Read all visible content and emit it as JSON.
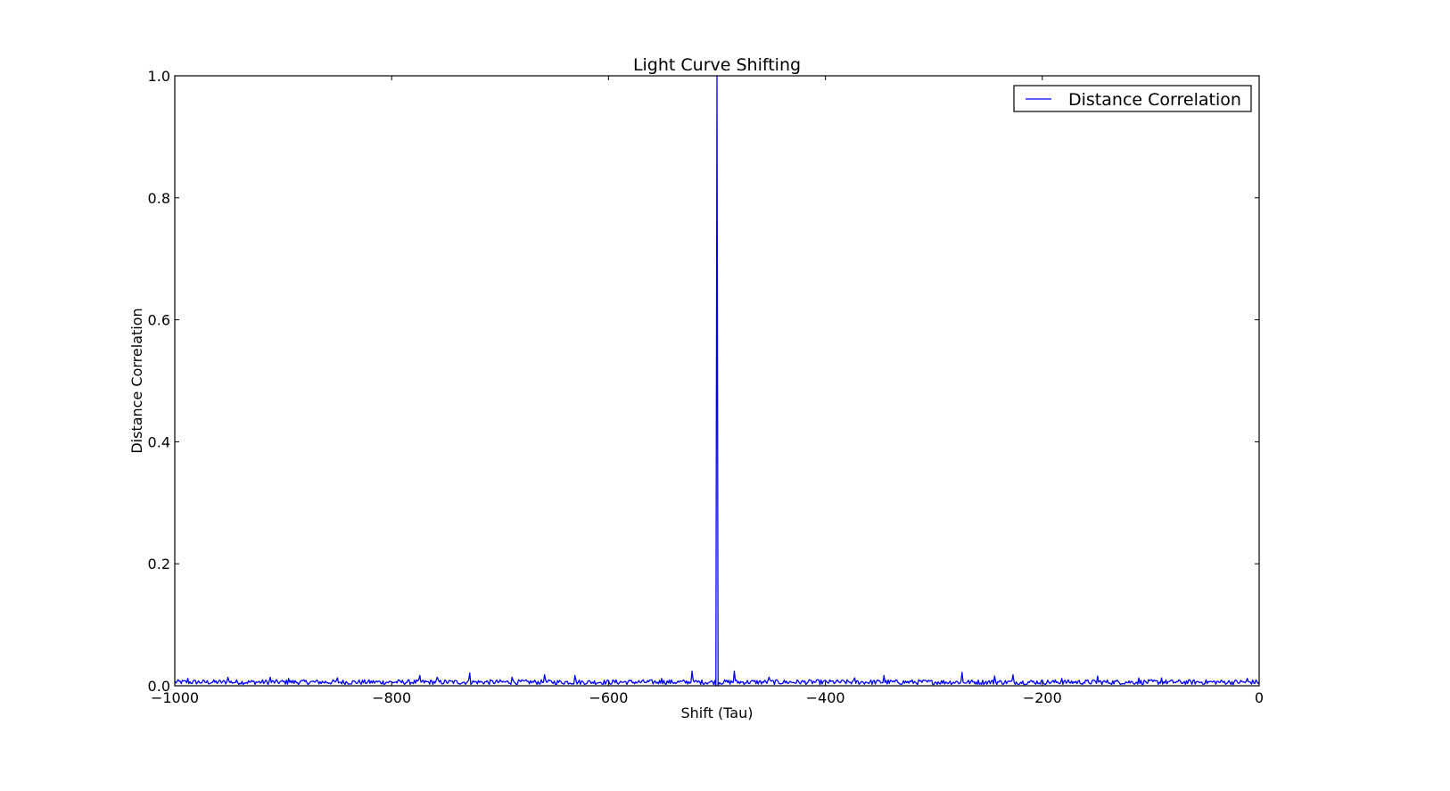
{
  "chart_data": {
    "type": "line",
    "title": "Light Curve Shifting",
    "xlabel": "Shift (Tau)",
    "ylabel": "Distance Correlation",
    "xlim": [
      -1000,
      0
    ],
    "ylim": [
      0.0,
      1.0
    ],
    "xticks": [
      -1000,
      -800,
      -600,
      -400,
      -200,
      0
    ],
    "xtick_labels": [
      "−1000",
      "−800",
      "−600",
      "−400",
      "−200",
      "0"
    ],
    "yticks": [
      0.0,
      0.2,
      0.4,
      0.6,
      0.8,
      1.0
    ],
    "ytick_labels": [
      "0.0",
      "0.2",
      "0.4",
      "0.6",
      "0.8",
      "1.0"
    ],
    "grid": false,
    "legend": {
      "position": "top-right"
    },
    "series": [
      {
        "name": "Distance Correlation",
        "color": "#0000ff",
        "baseline": 0.006,
        "noise_amplitude": 0.004,
        "peak": {
          "x": -500,
          "y": 1.0
        },
        "secondary_peaks": [
          {
            "x": -988,
            "y": 0.012
          },
          {
            "x": -951,
            "y": 0.014
          },
          {
            "x": -912,
            "y": 0.014
          },
          {
            "x": -895,
            "y": 0.012
          },
          {
            "x": -850,
            "y": 0.013
          },
          {
            "x": -774,
            "y": 0.017
          },
          {
            "x": -758,
            "y": 0.014
          },
          {
            "x": -728,
            "y": 0.021
          },
          {
            "x": -689,
            "y": 0.014
          },
          {
            "x": -659,
            "y": 0.018
          },
          {
            "x": -631,
            "y": 0.017
          },
          {
            "x": -551,
            "y": 0.012
          },
          {
            "x": -523,
            "y": 0.024
          },
          {
            "x": -484,
            "y": 0.024
          },
          {
            "x": -452,
            "y": 0.014
          },
          {
            "x": -373,
            "y": 0.013
          },
          {
            "x": -346,
            "y": 0.017
          },
          {
            "x": -274,
            "y": 0.022
          },
          {
            "x": -244,
            "y": 0.016
          },
          {
            "x": -227,
            "y": 0.018
          },
          {
            "x": -182,
            "y": 0.012
          },
          {
            "x": -149,
            "y": 0.016
          },
          {
            "x": -111,
            "y": 0.013
          },
          {
            "x": -90,
            "y": 0.013
          },
          {
            "x": -11,
            "y": 0.012
          }
        ]
      }
    ]
  }
}
